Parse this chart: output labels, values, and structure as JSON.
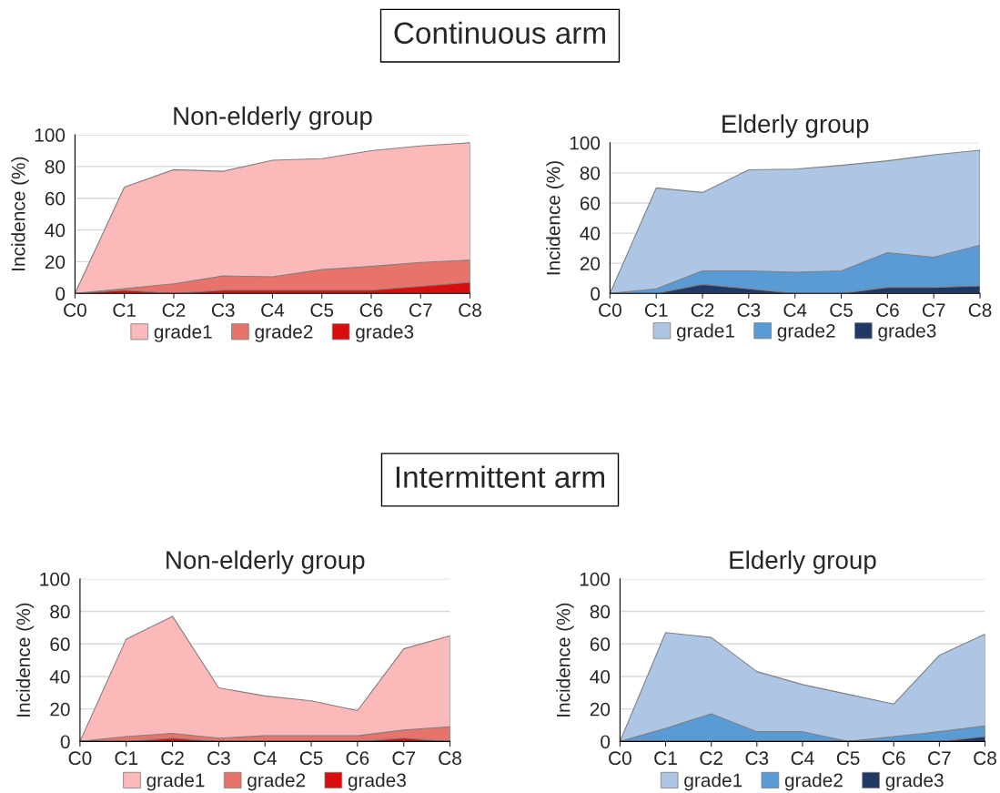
{
  "chart_data": [
    {
      "type": "area",
      "title": "Non-elderly group",
      "ylabel": "Incidence (%)",
      "annotations": [
        "Continuous arm"
      ],
      "categories": [
        "C0",
        "C1",
        "C2",
        "C3",
        "C4",
        "C5",
        "C6",
        "C7",
        "C8"
      ],
      "ylim": [
        0,
        100
      ],
      "yticks": [
        0,
        20,
        40,
        60,
        80,
        100
      ],
      "grid": "y",
      "legend": "bottom",
      "series": [
        {
          "name": "grade1",
          "color": "#fbb9ba",
          "values": [
            0,
            67,
            78,
            77,
            84,
            85,
            90,
            93,
            95
          ]
        },
        {
          "name": "grade2",
          "color": "#e8736b",
          "values": [
            0,
            3,
            6,
            11,
            10.5,
            15,
            17,
            19.5,
            21
          ]
        },
        {
          "name": "grade3",
          "color": "#d90d0d",
          "values": [
            0,
            2,
            0,
            2,
            2,
            2,
            2,
            4.5,
            7
          ]
        }
      ]
    },
    {
      "type": "area",
      "title": "Elderly group",
      "ylabel": "Incidence (%)",
      "categories": [
        "C0",
        "C1",
        "C2",
        "C3",
        "C4",
        "C5",
        "C6",
        "C7",
        "C8"
      ],
      "ylim": [
        0,
        100
      ],
      "yticks": [
        0,
        20,
        40,
        60,
        80,
        100
      ],
      "grid": "y",
      "legend": "bottom",
      "series": [
        {
          "name": "grade1",
          "color": "#adc6e5",
          "values": [
            0,
            70,
            67,
            82,
            82.5,
            85,
            88,
            92,
            95
          ]
        },
        {
          "name": "grade2",
          "color": "#5b9bd5",
          "values": [
            0,
            3,
            15,
            15,
            14,
            15,
            27,
            24,
            32
          ]
        },
        {
          "name": "grade3",
          "color": "#203864",
          "values": [
            0,
            0,
            6,
            3,
            0,
            0,
            4,
            4,
            5
          ]
        }
      ]
    },
    {
      "type": "area",
      "title": "Non-elderly group",
      "ylabel": "Incidence (%)",
      "annotations": [
        "Intermittent arm"
      ],
      "categories": [
        "C0",
        "C1",
        "C2",
        "C3",
        "C4",
        "C5",
        "C6",
        "C7",
        "C8"
      ],
      "ylim": [
        0,
        100
      ],
      "yticks": [
        0,
        20,
        40,
        60,
        80,
        100
      ],
      "grid": "y",
      "legend": "bottom",
      "series": [
        {
          "name": "grade1",
          "color": "#fbb9ba",
          "values": [
            0,
            63,
            77,
            33,
            28,
            25,
            19,
            57,
            65
          ]
        },
        {
          "name": "grade2",
          "color": "#e8736b",
          "values": [
            0,
            3,
            5,
            2,
            3.5,
            3.5,
            3.5,
            7,
            9
          ]
        },
        {
          "name": "grade3",
          "color": "#d90d0d",
          "values": [
            0,
            0,
            2,
            0,
            0,
            0,
            0,
            2,
            0
          ]
        }
      ]
    },
    {
      "type": "area",
      "title": "Elderly group",
      "ylabel": "Incidence (%)",
      "categories": [
        "C0",
        "C1",
        "C2",
        "C3",
        "C4",
        "C5",
        "C6",
        "C7",
        "C8"
      ],
      "ylim": [
        0,
        100
      ],
      "yticks": [
        0,
        20,
        40,
        60,
        80,
        100
      ],
      "grid": "y",
      "legend": "bottom",
      "series": [
        {
          "name": "grade1",
          "color": "#adc6e5",
          "values": [
            0,
            67,
            64,
            43,
            35,
            29,
            23,
            53,
            66
          ]
        },
        {
          "name": "grade2",
          "color": "#5b9bd5",
          "values": [
            0,
            8,
            17,
            6,
            6,
            0,
            3,
            6,
            9.5
          ]
        },
        {
          "name": "grade3",
          "color": "#203864",
          "values": [
            0,
            0,
            0,
            0,
            0,
            0,
            0,
            0,
            3
          ]
        }
      ]
    }
  ]
}
